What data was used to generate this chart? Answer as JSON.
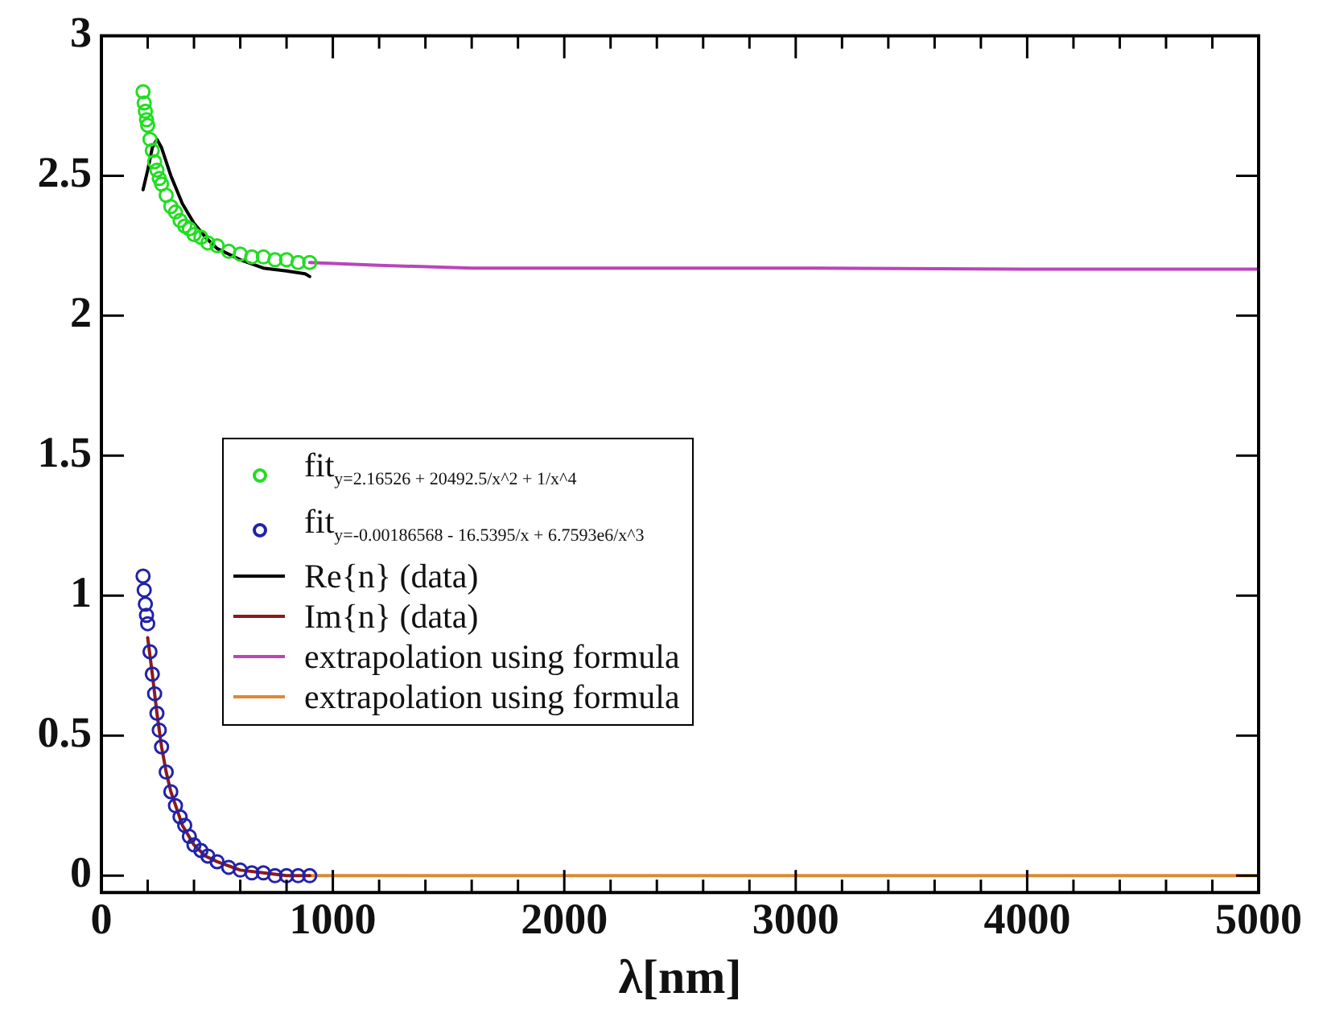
{
  "chart_data": {
    "type": "scatter",
    "xlabel": "λ[nm]",
    "legend": "left",
    "xlim": [
      0,
      5000
    ],
    "ylim": [
      -0.06,
      3
    ],
    "grid": false,
    "xticks": [
      0,
      {
        "value": 200,
        "label": null
      },
      {
        "value": 400,
        "label": null
      },
      {
        "value": 600,
        "label": null
      },
      {
        "value": 800,
        "label": null
      },
      1000,
      {
        "value": 1200,
        "label": null
      },
      {
        "value": 1400,
        "label": null
      },
      {
        "value": 1600,
        "label": null
      },
      {
        "value": 1800,
        "label": null
      },
      2000,
      {
        "value": 2200,
        "label": null
      },
      {
        "value": 2400,
        "label": null
      },
      {
        "value": 2600,
        "label": null
      },
      {
        "value": 2800,
        "label": null
      },
      3000,
      {
        "value": 3200,
        "label": null
      },
      {
        "value": 3400,
        "label": null
      },
      {
        "value": 3600,
        "label": null
      },
      {
        "value": 3800,
        "label": null
      },
      4000,
      {
        "value": 4200,
        "label": null
      },
      {
        "value": 4400,
        "label": null
      },
      {
        "value": 4600,
        "label": null
      },
      {
        "value": 4800,
        "label": null
      },
      5000
    ],
    "yticks": [
      0,
      0.5,
      1,
      1.5,
      2,
      2.5,
      3
    ],
    "series": [
      {
        "name": "fit$_{y=2.16526 + 20492.5/x^2 + 1/x^4}$",
        "type": "scatter",
        "marker": "circle",
        "color": "#22dd22",
        "x": [
          180,
          185,
          190,
          195,
          200,
          210,
          220,
          230,
          240,
          250,
          260,
          280,
          300,
          320,
          340,
          360,
          380,
          400,
          430,
          460,
          500,
          550,
          600,
          650,
          700,
          750,
          800,
          850,
          900
        ],
        "values": [
          2.8,
          2.76,
          2.73,
          2.7,
          2.68,
          2.63,
          2.59,
          2.55,
          2.52,
          2.49,
          2.47,
          2.43,
          2.39,
          2.37,
          2.34,
          2.32,
          2.31,
          2.29,
          2.28,
          2.26,
          2.25,
          2.23,
          2.22,
          2.21,
          2.21,
          2.2,
          2.2,
          2.19,
          2.19
        ]
      },
      {
        "name": "fit$_{y=-0.00186568 - 16.5395/x + 6.7593e6/x^3}$",
        "type": "scatter",
        "marker": "circle",
        "color": "#2222aa",
        "x": [
          180,
          185,
          190,
          195,
          200,
          210,
          220,
          230,
          240,
          250,
          260,
          280,
          300,
          320,
          340,
          360,
          380,
          400,
          430,
          460,
          500,
          550,
          600,
          650,
          700,
          750,
          800,
          850,
          900
        ],
        "values": [
          1.07,
          1.02,
          0.97,
          0.93,
          0.9,
          0.8,
          0.72,
          0.65,
          0.58,
          0.52,
          0.46,
          0.37,
          0.3,
          0.25,
          0.21,
          0.18,
          0.14,
          0.11,
          0.09,
          0.07,
          0.05,
          0.03,
          0.02,
          0.01,
          0.01,
          0.0,
          0.0,
          0.0,
          0.0
        ]
      },
      {
        "name": "Re{n} (data)",
        "type": "line",
        "marker": "none",
        "color": "#000000",
        "x": [
          180,
          200,
          220,
          240,
          260,
          300,
          350,
          400,
          450,
          500,
          600,
          700,
          800,
          880,
          900
        ],
        "values": [
          2.45,
          2.52,
          2.6,
          2.63,
          2.6,
          2.5,
          2.4,
          2.33,
          2.28,
          2.24,
          2.2,
          2.17,
          2.16,
          2.15,
          2.14
        ]
      },
      {
        "name": "Im{n} (data)",
        "type": "line",
        "marker": "none",
        "color": "#8b1a1a",
        "x": [
          200,
          220,
          240,
          260,
          280,
          300,
          350,
          400,
          450,
          500,
          600,
          700,
          800,
          900
        ],
        "values": [
          0.85,
          0.72,
          0.58,
          0.46,
          0.37,
          0.3,
          0.18,
          0.11,
          0.07,
          0.05,
          0.02,
          0.01,
          0.0,
          0.0
        ]
      },
      {
        "name": "extrapolation using formula",
        "type": "line",
        "marker": "none",
        "color": "#bb44bb",
        "x": [
          900,
          1200,
          1600,
          2000,
          3000,
          4000,
          5000
        ],
        "values": [
          2.19,
          2.18,
          2.17,
          2.17,
          2.17,
          2.166,
          2.166
        ]
      },
      {
        "name": "extrapolation using formula",
        "type": "line",
        "marker": "none",
        "color": "#dd8833",
        "x": [
          900,
          2000,
          3000,
          4000,
          5000
        ],
        "values": [
          0.0,
          0.0,
          0.0,
          0.0,
          0.0
        ]
      }
    ]
  }
}
